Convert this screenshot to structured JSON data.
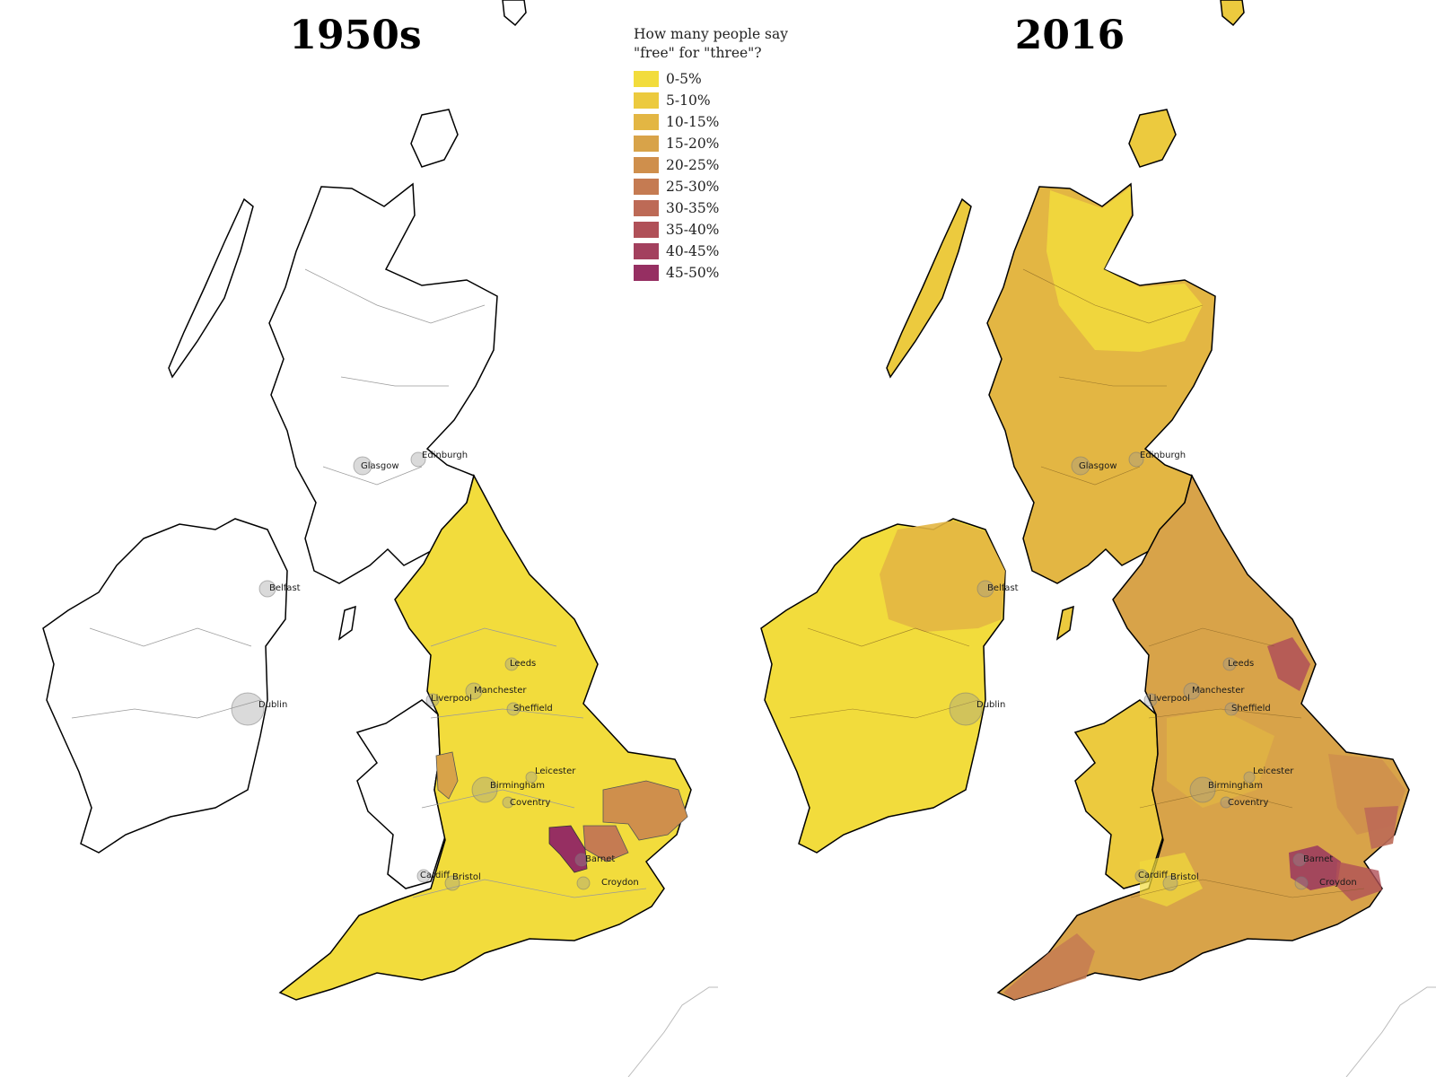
{
  "legend": {
    "title_line1": "How many people say",
    "title_line2": "\"free\" for \"three\"?",
    "items": [
      {
        "label": "0-5%",
        "color": "#f2dc3c"
      },
      {
        "label": "5-10%",
        "color": "#ecca3e"
      },
      {
        "label": "10-15%",
        "color": "#e3b643"
      },
      {
        "label": "15-20%",
        "color": "#d8a349"
      },
      {
        "label": "20-25%",
        "color": "#cf8f4c"
      },
      {
        "label": "25-30%",
        "color": "#c57b52"
      },
      {
        "label": "30-35%",
        "color": "#bd6a56"
      },
      {
        "label": "35-40%",
        "color": "#b05058"
      },
      {
        "label": "40-45%",
        "color": "#a3405e"
      },
      {
        "label": "45-50%",
        "color": "#962f62"
      }
    ]
  },
  "panels": [
    {
      "title": "1950s"
    },
    {
      "title": "2016"
    }
  ],
  "cities": [
    "Glasgow",
    "Edinburgh",
    "Belfast",
    "Dublin",
    "Leeds",
    "Manchester",
    "Liverpool",
    "Sheffield",
    "Leicester",
    "Birmingham",
    "Coventry",
    "Barnet",
    "Croydon",
    "Cardiff",
    "Bristol"
  ]
}
